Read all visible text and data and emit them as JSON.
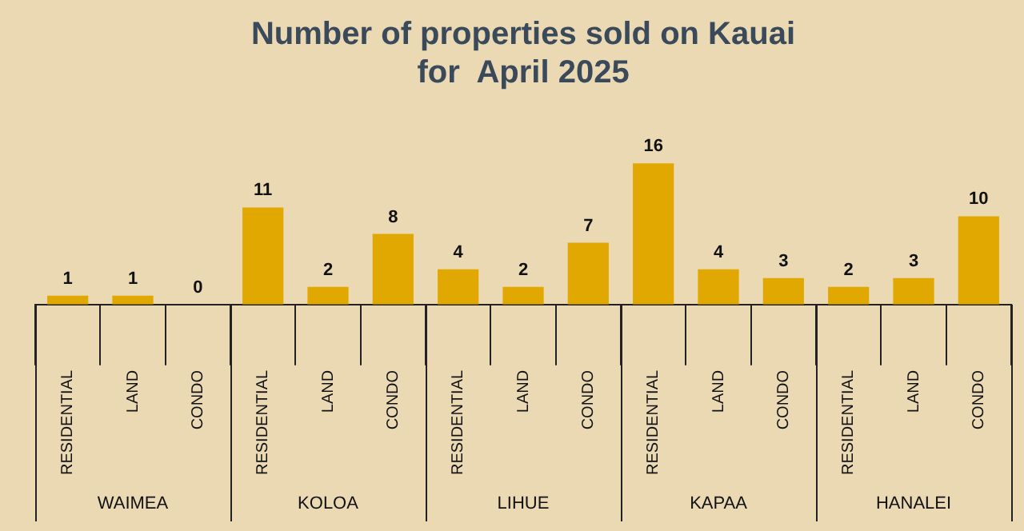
{
  "chart_data": {
    "type": "bar",
    "title": "Number of properties sold on Kauai\nfor  April 2025",
    "categories": [
      "RESIDENTIAL",
      "LAND",
      "CONDO",
      "RESIDENTIAL",
      "LAND",
      "CONDO",
      "RESIDENTIAL",
      "LAND",
      "CONDO",
      "RESIDENTIAL",
      "LAND",
      "CONDO",
      "RESIDENTIAL",
      "LAND",
      "CONDO"
    ],
    "values": [
      1,
      1,
      0,
      11,
      2,
      8,
      4,
      2,
      7,
      16,
      4,
      3,
      2,
      3,
      10
    ],
    "color": "#e0a800",
    "annotations": [
      "WAIMEA",
      "KOLOA",
      "LIHUE",
      "KAPAA",
      "HANALEI"
    ],
    "data_labels": true,
    "legend": false,
    "grid": false
  }
}
